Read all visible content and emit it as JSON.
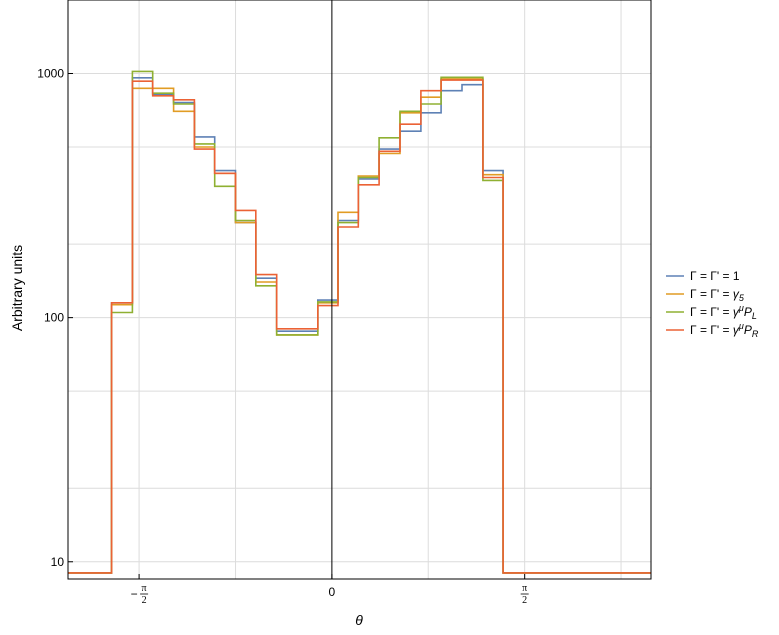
{
  "chart_data": {
    "type": "line",
    "step": true,
    "xlabel": "θ",
    "ylabel": "Arbitrary units",
    "y_scale": "log",
    "grid": true,
    "legend_position": "right",
    "x_range": [
      -2.15,
      2.6
    ],
    "y_range": [
      8.5,
      2000
    ],
    "y_ticks": [
      {
        "value": 10,
        "label": "10"
      },
      {
        "value": 100,
        "label": "100"
      },
      {
        "value": 1000,
        "label": "1000"
      }
    ],
    "x_ticks": [
      {
        "value": -1.5708,
        "sign": "−",
        "num": "π",
        "den": "2"
      },
      {
        "value": 0,
        "label": "0"
      },
      {
        "value": 1.5708,
        "sign": "",
        "num": "π",
        "den": "2"
      }
    ],
    "bin_edges": [
      -2.15,
      -1.795,
      -1.625,
      -1.46,
      -1.29,
      -1.12,
      -0.955,
      -0.785,
      -0.62,
      -0.45,
      -0.28,
      -0.115,
      0.05,
      0.215,
      0.385,
      0.555,
      0.725,
      0.89,
      1.06,
      1.23,
      1.395,
      1.565,
      1.735,
      1.905,
      2.6
    ],
    "series": [
      {
        "name_prefix": "Γ = Γ' = ",
        "name_base": "1",
        "name_sup": "",
        "name_sub": "",
        "color": "#5e81b5",
        "values": [
          9,
          115,
          960,
          820,
          760,
          550,
          400,
          245,
          145,
          88,
          88,
          118,
          250,
          370,
          490,
          580,
          690,
          850,
          900,
          400,
          9,
          9,
          9,
          9
        ]
      },
      {
        "name_prefix": "Γ = Γ' = ",
        "name_base": "γ",
        "name_sup": "",
        "name_sub": "5",
        "color": "#e19c24",
        "values": [
          9,
          113,
          870,
          870,
          700,
          500,
          390,
          245,
          140,
          85,
          85,
          115,
          270,
          380,
          470,
          690,
          800,
          950,
          950,
          385,
          9,
          9,
          9,
          9
        ]
      },
      {
        "name_prefix": "Γ = Γ' = ",
        "name_base": "γ",
        "name_sup": "μ",
        "name_sub": "L",
        "color": "#8fb032",
        "values": [
          9,
          105,
          1020,
          830,
          750,
          515,
          345,
          250,
          135,
          85,
          85,
          116,
          245,
          375,
          545,
          700,
          750,
          965,
          965,
          365,
          9,
          9,
          9,
          9
        ]
      },
      {
        "name_prefix": "Γ = Γ' = ",
        "name_base": "γ",
        "name_sup": "μ",
        "name_sub": "R",
        "color": "#eb6235",
        "values": [
          9,
          115,
          930,
          810,
          780,
          490,
          390,
          275,
          150,
          90,
          90,
          112,
          235,
          350,
          480,
          620,
          850,
          940,
          940,
          375,
          9,
          9,
          9,
          9
        ]
      }
    ]
  }
}
